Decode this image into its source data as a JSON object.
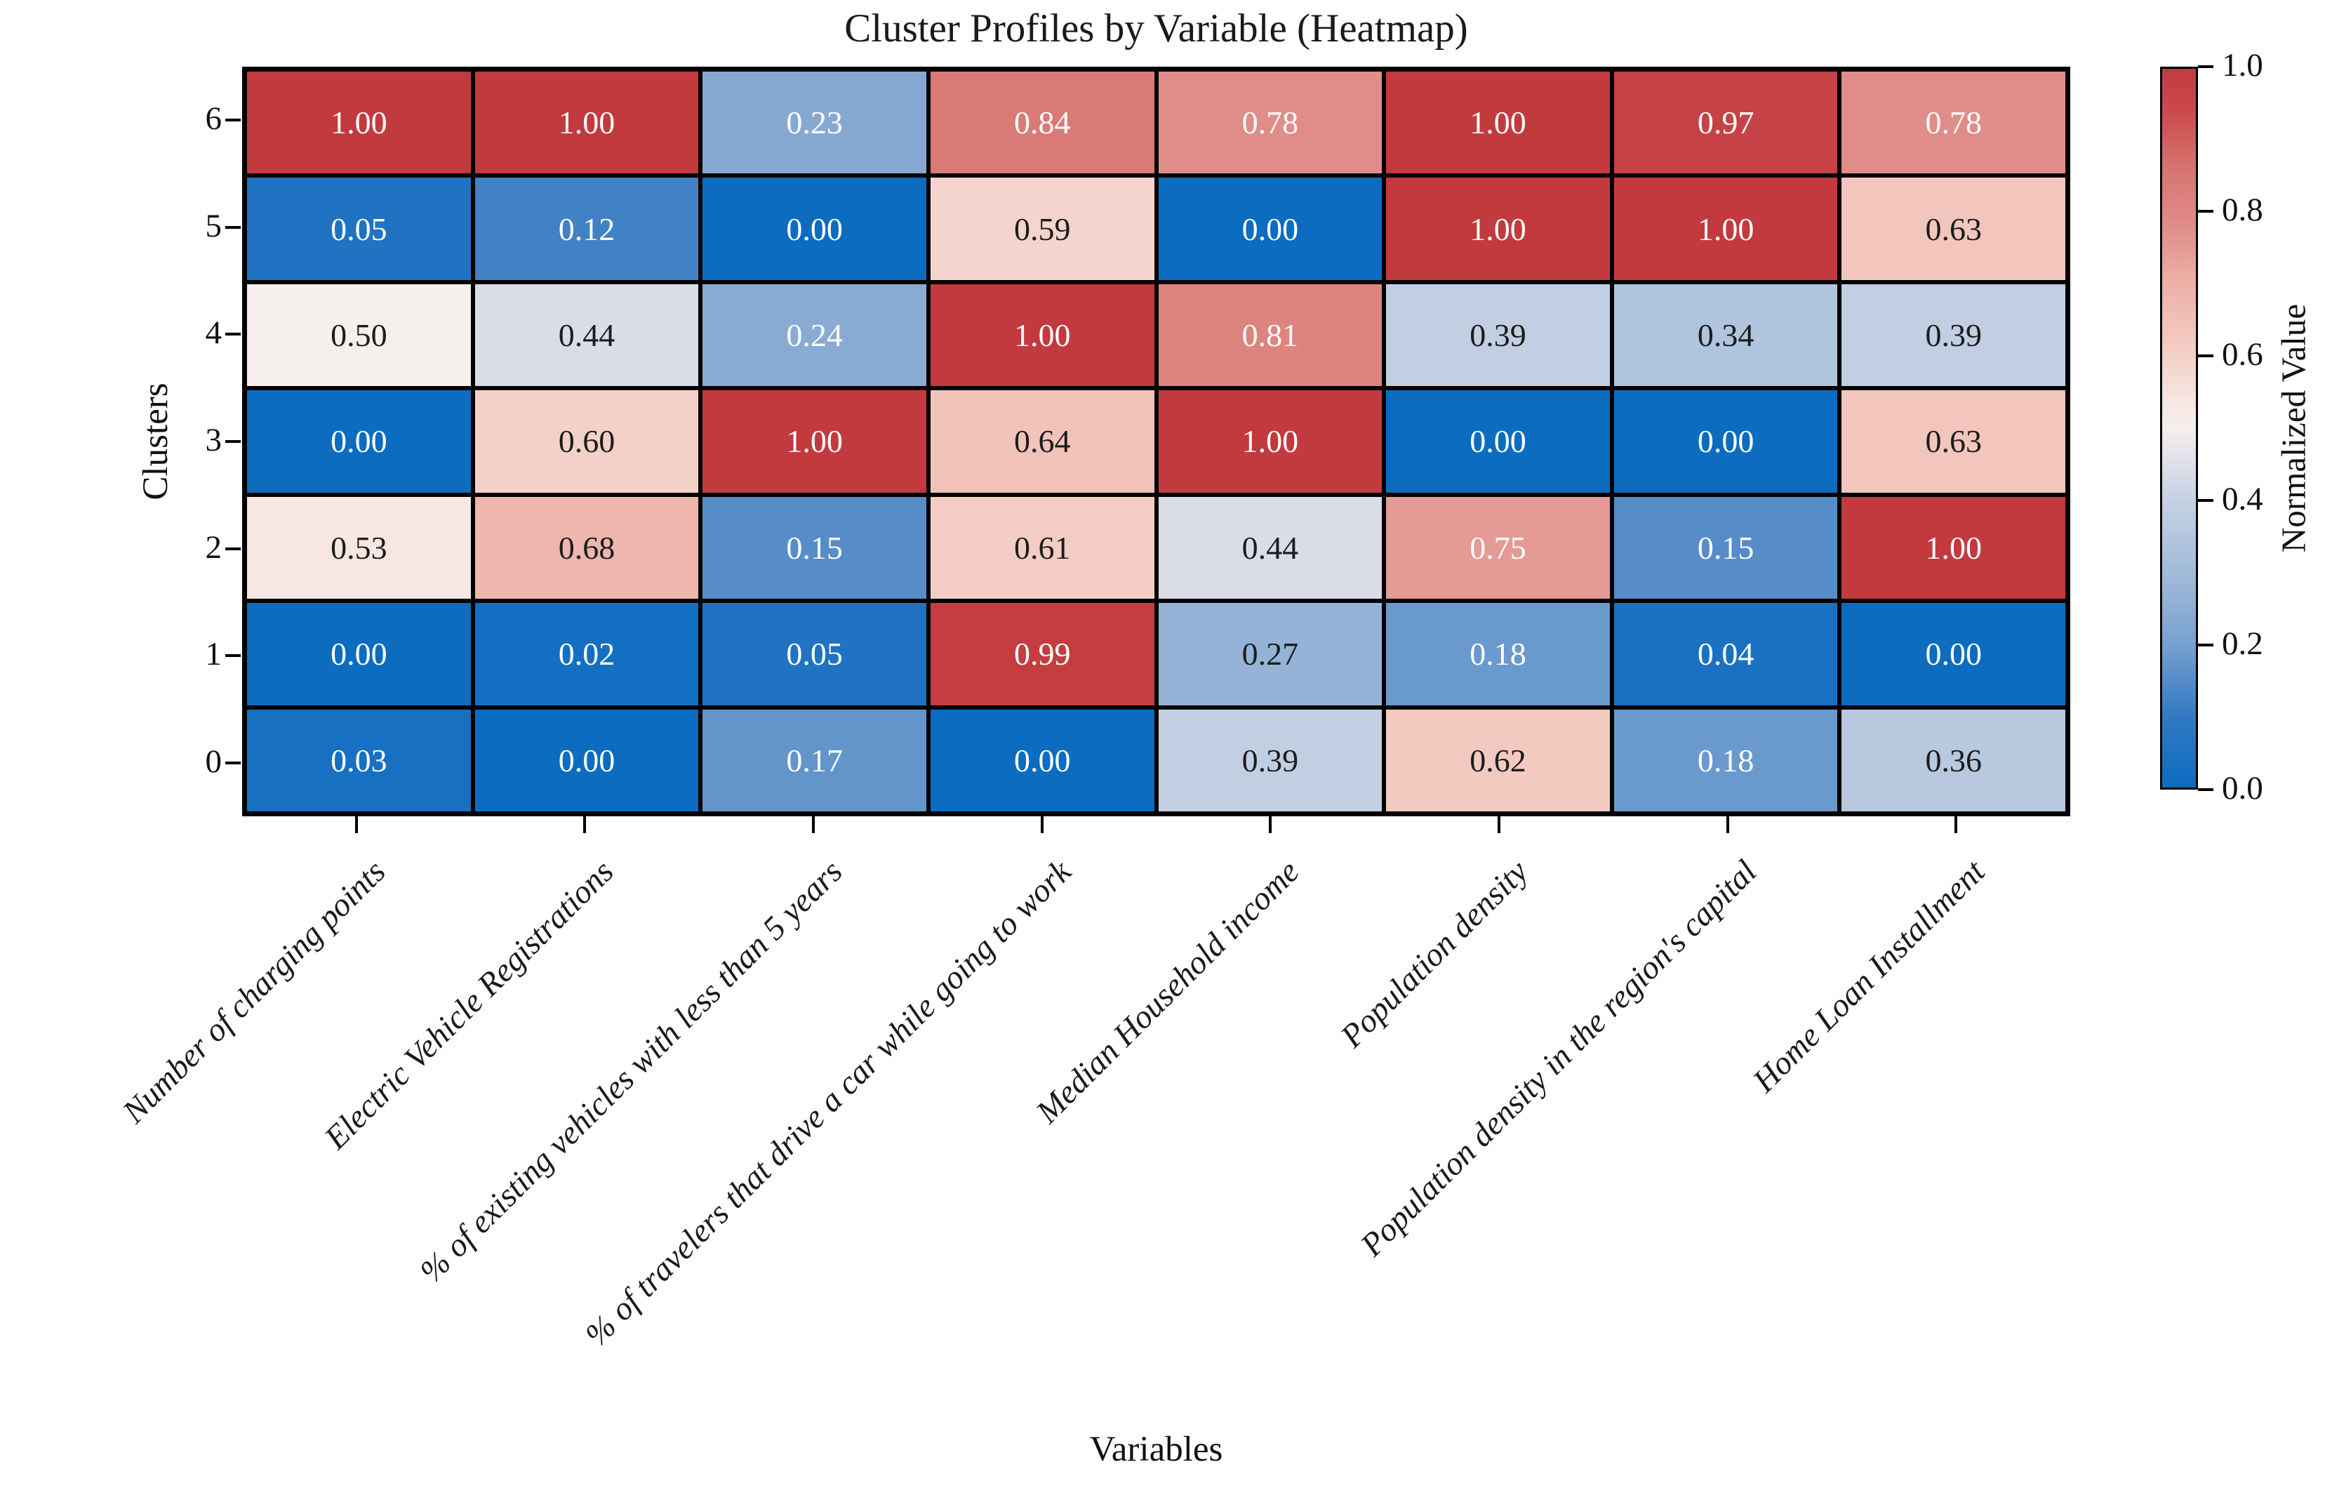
{
  "chart_data": {
    "type": "heatmap",
    "title": "Cluster Profiles by Variable (Heatmap)",
    "xlabel": "Variables",
    "ylabel": "Clusters",
    "columns": [
      "Number of charging points",
      "Electric Vehicle Registrations",
      "% of existing vehicles with less than 5 years",
      "% of travelers that drive a car while going to work",
      "Median Household income",
      "Population density",
      "Population density in the region's capital",
      "Home Loan Installment"
    ],
    "rows": [
      "6",
      "5",
      "4",
      "3",
      "2",
      "1",
      "0"
    ],
    "matrix": [
      [
        1.0,
        1.0,
        0.23,
        0.84,
        0.78,
        1.0,
        0.97,
        0.78
      ],
      [
        0.05,
        0.12,
        0.0,
        0.59,
        0.0,
        1.0,
        1.0,
        0.63
      ],
      [
        0.5,
        0.44,
        0.24,
        1.0,
        0.81,
        0.39,
        0.34,
        0.39
      ],
      [
        0.0,
        0.6,
        1.0,
        0.64,
        1.0,
        0.0,
        0.0,
        0.63
      ],
      [
        0.53,
        0.68,
        0.15,
        0.61,
        0.44,
        0.75,
        0.15,
        1.0
      ],
      [
        0.0,
        0.02,
        0.05,
        0.99,
        0.27,
        0.18,
        0.04,
        0.0
      ],
      [
        0.03,
        0.0,
        0.17,
        0.0,
        0.39,
        0.62,
        0.18,
        0.36
      ]
    ],
    "value_decimals": 2,
    "grid": "black cell borders",
    "legend_position": "right colorbar",
    "colorbar": {
      "label": "Normalized Value",
      "min": 0.0,
      "max": 1.0,
      "ticks": [
        {
          "label": "1.0",
          "value": 1.0
        },
        {
          "label": "0.8",
          "value": 0.8
        },
        {
          "label": "0.6",
          "value": 0.6
        },
        {
          "label": "0.4",
          "value": 0.4
        },
        {
          "label": "0.2",
          "value": 0.2
        },
        {
          "label": "0.0",
          "value": 0.0
        }
      ]
    },
    "colors": {
      "colormap_stops": [
        [
          0.0,
          "#0b6cc0"
        ],
        [
          0.1,
          "#3379c3"
        ],
        [
          0.2,
          "#78a1cf"
        ],
        [
          0.3,
          "#a2bbd9"
        ],
        [
          0.4,
          "#c6d1e3"
        ],
        [
          0.47,
          "#e7e6ec"
        ],
        [
          0.5,
          "#f5efed"
        ],
        [
          0.55,
          "#f6e2dc"
        ],
        [
          0.63,
          "#f2c6bc"
        ],
        [
          0.7,
          "#eeb0a8"
        ],
        [
          0.78,
          "#e08d89"
        ],
        [
          0.86,
          "#d8746f"
        ],
        [
          0.94,
          "#ca4a4d"
        ],
        [
          1.0,
          "#c23a3e"
        ]
      ],
      "cell_border": "#000000",
      "annotation_light": "#ffffff",
      "annotation_dark": "#1c1c1c",
      "luminance_threshold": 0.43
    }
  }
}
